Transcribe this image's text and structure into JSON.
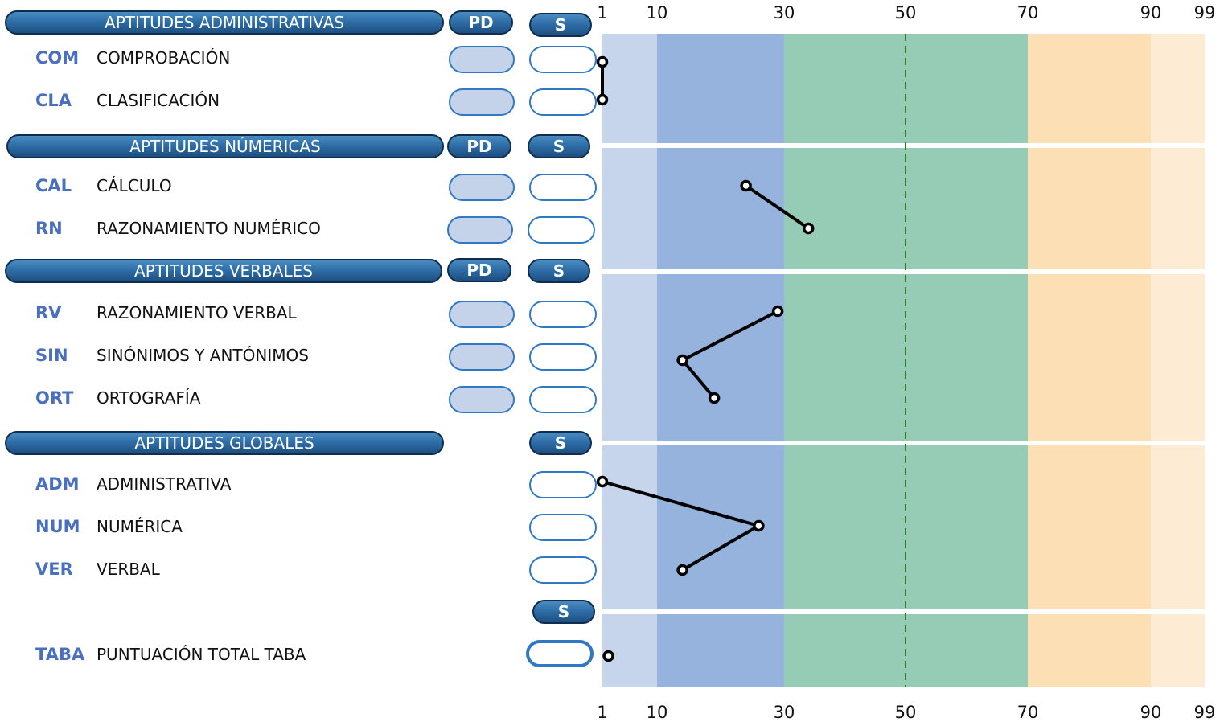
{
  "scale": {
    "ticks": [
      "1",
      "10",
      "30",
      "50",
      "70",
      "90",
      "99"
    ],
    "band_colors": [
      "#c6d4ec",
      "#95b3dc",
      "#96cbb6",
      "#96cbb6",
      "#fddfb5",
      "#fdebd3"
    ]
  },
  "sections": [
    {
      "title": "APTITUDES ADMINISTRATIVAS",
      "pd_label": "PD",
      "s_label": "S",
      "rows": [
        {
          "code": "COM",
          "name": "COMPROBACIÓN"
        },
        {
          "code": "CLA",
          "name": "CLASIFICACIÓN"
        }
      ]
    },
    {
      "title": "APTITUDES NÚMERICAS",
      "pd_label": "PD",
      "s_label": "S",
      "rows": [
        {
          "code": "CAL",
          "name": "CÁLCULO"
        },
        {
          "code": "RN",
          "name": "RAZONAMIENTO NUMÉRICO"
        }
      ]
    },
    {
      "title": "APTITUDES VERBALES",
      "pd_label": "PD",
      "s_label": "S",
      "rows": [
        {
          "code": "RV",
          "name": "RAZONAMIENTO VERBAL"
        },
        {
          "code": "SIN",
          "name": "SINÓNIMOS Y ANTÓNIMOS"
        },
        {
          "code": "ORT",
          "name": "ORTOGRAFÍA"
        }
      ]
    },
    {
      "title": "APTITUDES GLOBALES",
      "s_label": "S",
      "rows": [
        {
          "code": "ADM",
          "name": "ADMINISTRATIVA"
        },
        {
          "code": "NUM",
          "name": "NUMÉRICA"
        },
        {
          "code": "VER",
          "name": "VERBAL"
        }
      ]
    },
    {
      "s_label": "S",
      "rows": [
        {
          "code": "TABA",
          "name": "PUNTUACIÓN TOTAL TABA"
        }
      ]
    }
  ],
  "chart_data": {
    "type": "line",
    "x_axis": "percentile",
    "xlim": [
      1,
      99
    ],
    "xticks": [
      1,
      10,
      30,
      50,
      70,
      90,
      99
    ],
    "reference_line": 50,
    "series": [
      {
        "points": [
          {
            "row": "COM",
            "x": 1
          },
          {
            "row": "CLA",
            "x": 1
          }
        ]
      },
      {
        "points": [
          {
            "row": "CAL",
            "x": 24
          },
          {
            "row": "RN",
            "x": 34
          }
        ]
      },
      {
        "points": [
          {
            "row": "RV",
            "x": 29
          },
          {
            "row": "SIN",
            "x": 14
          },
          {
            "row": "ORT",
            "x": 19
          }
        ]
      },
      {
        "points": [
          {
            "row": "ADM",
            "x": 1
          },
          {
            "row": "NUM",
            "x": 26
          },
          {
            "row": "VER",
            "x": 14
          }
        ]
      },
      {
        "points": [
          {
            "row": "TABA",
            "x": 2
          }
        ]
      }
    ]
  }
}
